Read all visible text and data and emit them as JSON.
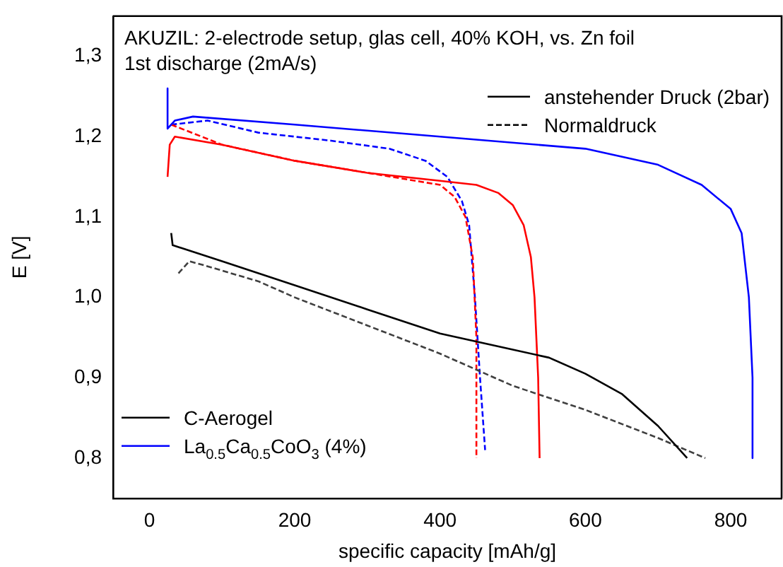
{
  "chart_data": {
    "type": "line",
    "title": "AKUZIL: 2-electrode setup, glas cell, 40% KOH, vs. Zn foil",
    "subtitle": "1st discharge (2mA/s)",
    "xlabel": "specific capacity [mAh/g]",
    "ylabel": "E [V]",
    "annotations": [
      "anstehender Druck (2bar)",
      "Normaldruck"
    ],
    "xlim": [
      -50,
      870
    ],
    "xticks": [
      0,
      200,
      400,
      600,
      800
    ],
    "ylim": [
      0.75,
      1.35
    ],
    "yticks": [
      {
        "value": 0.8,
        "label": "0,8"
      },
      {
        "value": 0.9,
        "label": "0,9"
      },
      {
        "value": 1.0,
        "label": "1,0"
      },
      {
        "value": 1.1,
        "label": "1,1"
      },
      {
        "value": 1.2,
        "label": "1,2"
      },
      {
        "value": 1.3,
        "label": "1,3"
      }
    ],
    "grid": false,
    "legend": "bottom left",
    "marker": "none",
    "series": [
      {
        "name": "C-Aerogel",
        "color": "#000000",
        "line_style": "solid",
        "x": [
          30,
          32,
          100,
          200,
          300,
          400,
          500,
          550,
          600,
          650,
          700,
          740
        ],
        "values": [
          1.08,
          1.065,
          1.045,
          1.015,
          0.985,
          0.955,
          0.935,
          0.925,
          0.905,
          0.88,
          0.84,
          0.8
        ]
      },
      {
        "color": "#ff0000",
        "line_style": "solid",
        "x": [
          25,
          28,
          35,
          100,
          200,
          300,
          400,
          450,
          480,
          500,
          515,
          525,
          530,
          535,
          537
        ],
        "values": [
          1.15,
          1.19,
          1.2,
          1.19,
          1.17,
          1.155,
          1.145,
          1.14,
          1.13,
          1.115,
          1.09,
          1.05,
          1.0,
          0.9,
          0.8
        ]
      },
      {
        "name": "La$_{0.5}$Ca$_{0.5}$CoO$_{3}$ (4%)",
        "color": "#0000ff",
        "line_style": "solid",
        "x": [
          25,
          25,
          35,
          60,
          200,
          400,
          600,
          700,
          760,
          800,
          815,
          825,
          830,
          830
        ],
        "values": [
          1.26,
          1.21,
          1.22,
          1.225,
          1.215,
          1.2,
          1.185,
          1.165,
          1.14,
          1.11,
          1.08,
          1.0,
          0.9,
          0.8
        ]
      },
      {
        "color": "#404040",
        "line_style": "dashed",
        "x": [
          40,
          55,
          75,
          150,
          200,
          300,
          400,
          500,
          600,
          700,
          765
        ],
        "values": [
          1.03,
          1.045,
          1.04,
          1.02,
          1.0,
          0.965,
          0.93,
          0.89,
          0.86,
          0.825,
          0.8
        ]
      },
      {
        "color": "#ff0000",
        "line_style": "dashed",
        "x": [
          30,
          100,
          200,
          300,
          400,
          420,
          435,
          445,
          450,
          450
        ],
        "values": [
          1.215,
          1.19,
          1.17,
          1.155,
          1.14,
          1.125,
          1.1,
          1.05,
          0.95,
          0.8
        ]
      },
      {
        "color": "#0000ff",
        "line_style": "dashed",
        "x": [
          30,
          80,
          150,
          250,
          330,
          380,
          410,
          430,
          440,
          448,
          455,
          462
        ],
        "values": [
          1.215,
          1.22,
          1.205,
          1.195,
          1.185,
          1.17,
          1.15,
          1.12,
          1.09,
          1.0,
          0.9,
          0.81
        ]
      }
    ]
  }
}
